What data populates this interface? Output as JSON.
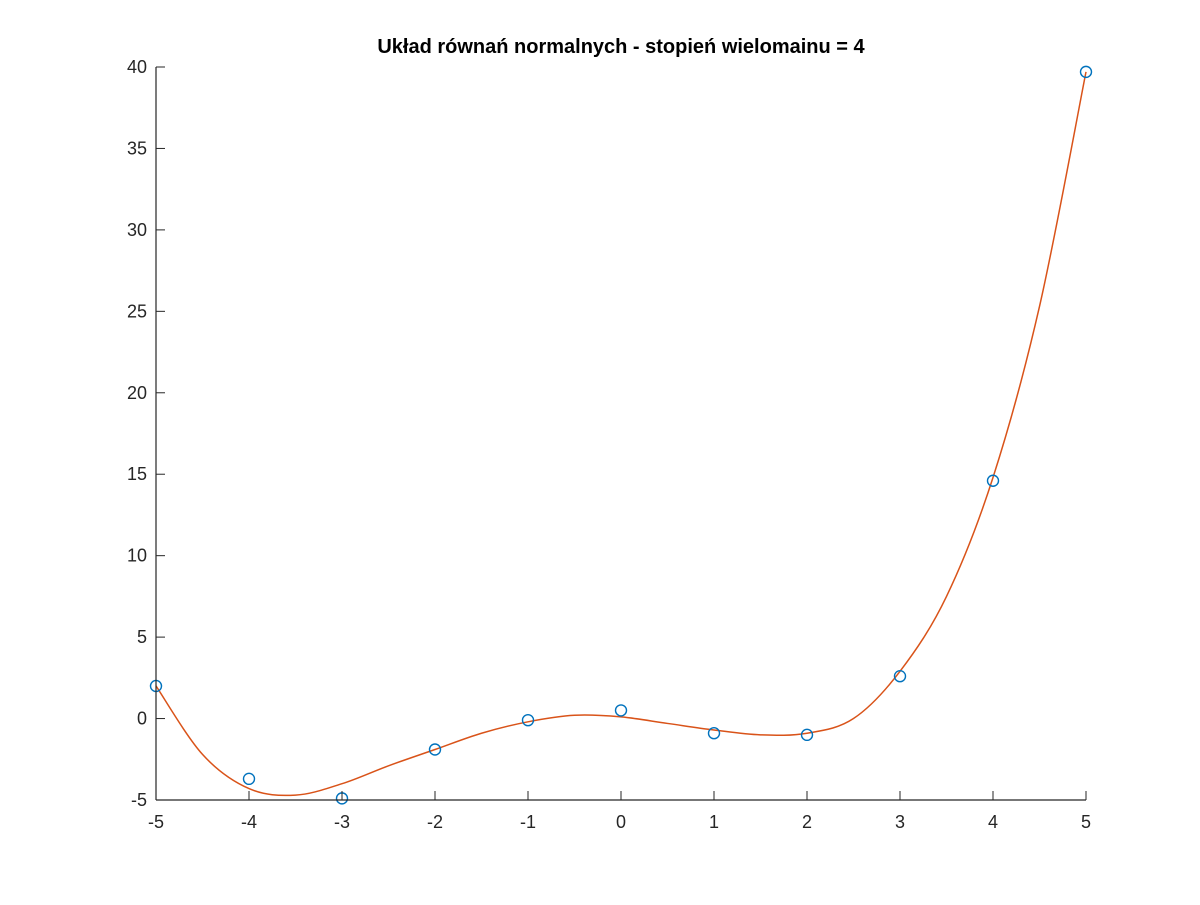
{
  "chart_data": {
    "type": "scatter",
    "title": "Układ równań normalnych - stopień wielomainu = 4",
    "xlabel": "",
    "ylabel": "",
    "xlim": [
      -5,
      5
    ],
    "ylim": [
      -5,
      40
    ],
    "x_ticks": [
      "-5",
      "-4",
      "-3",
      "-2",
      "-1",
      "0",
      "1",
      "2",
      "3",
      "4",
      "5"
    ],
    "y_ticks": [
      "-5",
      "0",
      "5",
      "10",
      "15",
      "20",
      "25",
      "30",
      "35",
      "40"
    ],
    "grid": false,
    "legend": "none",
    "colors": {
      "data_points": "#0072BD",
      "fit_curve": "#D95319",
      "axis": "#262626"
    },
    "series": [
      {
        "type": "scatter",
        "marker": "circle",
        "x": [
          -5,
          -4,
          -3,
          -2,
          -1,
          0,
          1,
          2,
          3,
          4,
          5
        ],
        "y": [
          2.0,
          -3.7,
          -4.9,
          -1.9,
          -0.1,
          0.5,
          -0.9,
          -1.0,
          2.6,
          14.6,
          39.7
        ]
      },
      {
        "type": "line",
        "fit_degree": 4,
        "x": [
          -5,
          -4.5,
          -4,
          -3.5,
          -3,
          -2.5,
          -2,
          -1.5,
          -1,
          -0.5,
          0,
          0.5,
          1,
          1.5,
          2,
          2.5,
          3,
          3.5,
          4,
          4.5,
          5
        ],
        "y": [
          2.0,
          -2.2,
          -4.3,
          -4.7,
          -4.0,
          -2.9,
          -1.9,
          -0.9,
          -0.2,
          0.2,
          0.1,
          -0.3,
          -0.7,
          -1.0,
          -0.9,
          0.0,
          2.9,
          7.5,
          14.8,
          25.3,
          39.7
        ]
      }
    ]
  }
}
